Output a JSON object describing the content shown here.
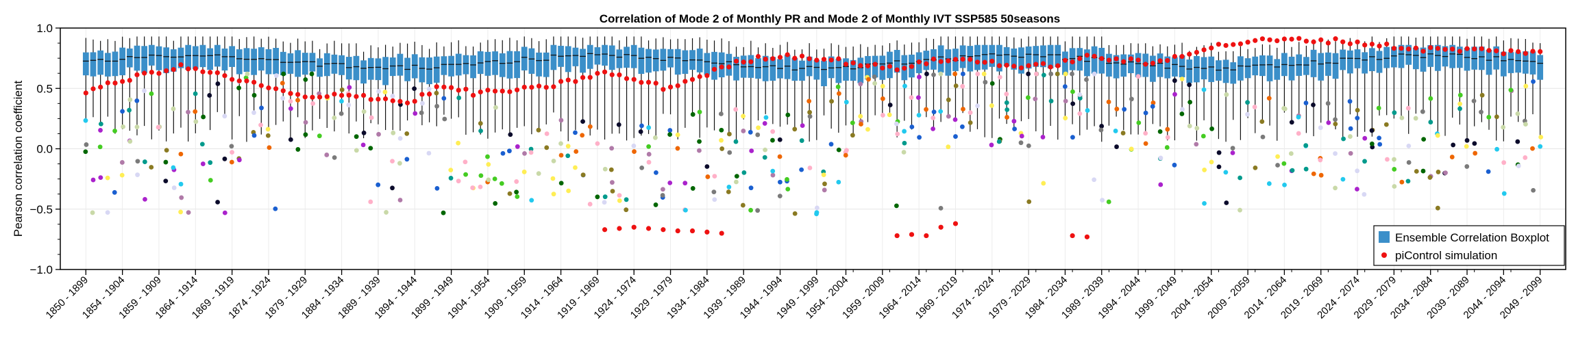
{
  "chart_data": {
    "type": "box",
    "title": "Correlation of Mode 2 of Monthly PR and Mode 2 of Monthly IVT SSP585 50seasons",
    "ylabel": "Pearson correlation coefficient",
    "xlabel": "",
    "ylim": [
      -1.0,
      1.0
    ],
    "yticks": [
      "1.0",
      "0.5",
      "0.0",
      "−0.5",
      "−1.0"
    ],
    "ytick_values": [
      1.0,
      0.5,
      0.0,
      -0.5,
      -1.0
    ],
    "grid": true,
    "legend_position": "lower-right",
    "legend": [
      {
        "label": "Ensemble Correlation Boxplot",
        "marker": "box",
        "color": "#3b8fc9"
      },
      {
        "label": "piControl simulation",
        "marker": "dot",
        "color": "#ee1111"
      }
    ],
    "xtick_labels": [
      "1850 - 1899",
      "1854 - 1904",
      "1859 - 1909",
      "1864 - 1914",
      "1869 - 1919",
      "1874 - 1924",
      "1879 - 1929",
      "1884 - 1934",
      "1889 - 1939",
      "1894 - 1944",
      "1899 - 1949",
      "1904 - 1954",
      "1909 - 1959",
      "1914 - 1964",
      "1919 - 1969",
      "1924 - 1974",
      "1929 - 1979",
      "1934 - 1984",
      "1939 - 1989",
      "1944 - 1994",
      "1949 - 1999",
      "1954 - 2004",
      "1959 - 2009",
      "1964 - 2014",
      "1969 - 2019",
      "1974 - 2024",
      "1979 - 2029",
      "1984 - 2034",
      "1989 - 2039",
      "1994 - 2044",
      "1999 - 2049",
      "2004 - 2054",
      "2009 - 2059",
      "2014 - 2064",
      "2019 - 2069",
      "2024 - 2074",
      "2029 - 2079",
      "2034 - 2084",
      "2039 - 2089",
      "2044 - 2094",
      "2049 - 2099"
    ],
    "n_windows": 200,
    "picontrol_anchor_values": [
      0.48,
      0.55,
      0.63,
      0.68,
      0.62,
      0.55,
      0.48,
      0.41,
      0.46,
      0.42,
      0.38,
      0.52,
      0.46,
      0.48,
      0.5,
      0.56,
      0.63,
      0.57,
      0.5,
      0.6,
      0.7,
      0.76,
      0.77,
      0.74,
      0.7,
      0.66,
      0.72,
      0.74,
      0.72,
      0.67,
      0.7,
      0.76,
      0.74,
      0.7,
      0.79,
      0.85,
      0.89,
      0.9,
      0.9,
      0.89,
      0.86,
      0.83,
      0.82,
      0.82,
      0.8,
      0.81
    ],
    "picontrol_low_cluster": [
      -0.67,
      -0.66,
      -0.65,
      -0.66,
      -0.67,
      -0.68,
      -0.68,
      -0.69,
      -0.7,
      -0.72,
      -0.71,
      -0.72,
      -0.65,
      -0.62,
      -0.72,
      -0.73
    ],
    "box_median_approx": 0.72,
    "box_q1_approx": 0.62,
    "box_q3_approx": 0.8,
    "whisker_high_approx": 0.9,
    "whisker_low_approx": 0.18,
    "scatter_palette": [
      "#0b0b2b",
      "#1a5fd0",
      "#009a8c",
      "#b07aa8",
      "#c9d9a8",
      "#ffb0c8",
      "#d8d8f4",
      "#ee6600",
      "#22c9ee",
      "#7a7a7a",
      "#44cc22",
      "#006600",
      "#ffee55",
      "#aa22cc",
      "#8a7a22"
    ]
  }
}
